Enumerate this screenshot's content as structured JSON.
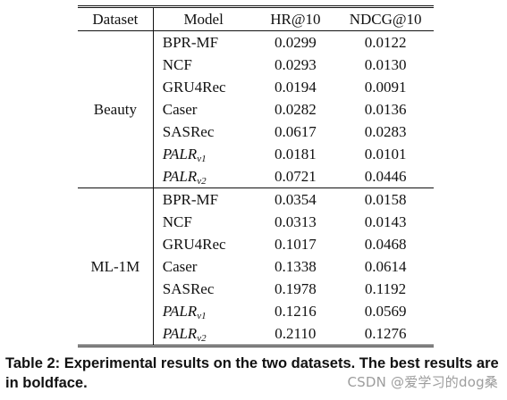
{
  "table": {
    "headers": {
      "dataset": "Dataset",
      "model": "Model",
      "hr": "HR@10",
      "ndcg": "NDCG@10"
    },
    "groups": [
      {
        "dataset": "Beauty",
        "rows": [
          {
            "model": "BPR-MF",
            "italic": false,
            "hr": "0.0299",
            "ndcg": "0.0122",
            "bold": false
          },
          {
            "model": "NCF",
            "italic": false,
            "hr": "0.0293",
            "ndcg": "0.0130",
            "bold": false
          },
          {
            "model": "GRU4Rec",
            "italic": false,
            "hr": "0.0194",
            "ndcg": "0.0091",
            "bold": false
          },
          {
            "model": "Caser",
            "italic": false,
            "hr": "0.0282",
            "ndcg": "0.0136",
            "bold": false
          },
          {
            "model": "SASRec",
            "italic": false,
            "hr": "0.0617",
            "ndcg": "0.0283",
            "bold": false
          },
          {
            "model": "PALR",
            "sub": "v1",
            "italic": true,
            "hr": "0.0181",
            "ndcg": "0.0101",
            "bold": false
          },
          {
            "model": "PALR",
            "sub": "v2",
            "italic": true,
            "hr": "0.0721",
            "ndcg": "0.0446",
            "bold": true
          }
        ]
      },
      {
        "dataset": "ML-1M",
        "rows": [
          {
            "model": "BPR-MF",
            "italic": false,
            "hr": "0.0354",
            "ndcg": "0.0158",
            "bold": false
          },
          {
            "model": "NCF",
            "italic": false,
            "hr": "0.0313",
            "ndcg": "0.0143",
            "bold": false
          },
          {
            "model": "GRU4Rec",
            "italic": false,
            "hr": "0.1017",
            "ndcg": "0.0468",
            "bold": false
          },
          {
            "model": "Caser",
            "italic": false,
            "hr": "0.1338",
            "ndcg": "0.0614",
            "bold": false
          },
          {
            "model": "SASRec",
            "italic": false,
            "hr": "0.1978",
            "ndcg": "0.1192",
            "bold": false
          },
          {
            "model": "PALR",
            "sub": "v1",
            "italic": true,
            "hr": "0.1216",
            "ndcg": "0.0569",
            "bold": false
          },
          {
            "model": "PALR",
            "sub": "v2",
            "italic": true,
            "hr": "0.2110",
            "ndcg": "0.1276",
            "bold": true
          }
        ]
      }
    ]
  },
  "caption": "Table 2: Experimental results on the two datasets. The best results are in boldface.",
  "watermark": "CSDN @爱学习的dog桑"
}
